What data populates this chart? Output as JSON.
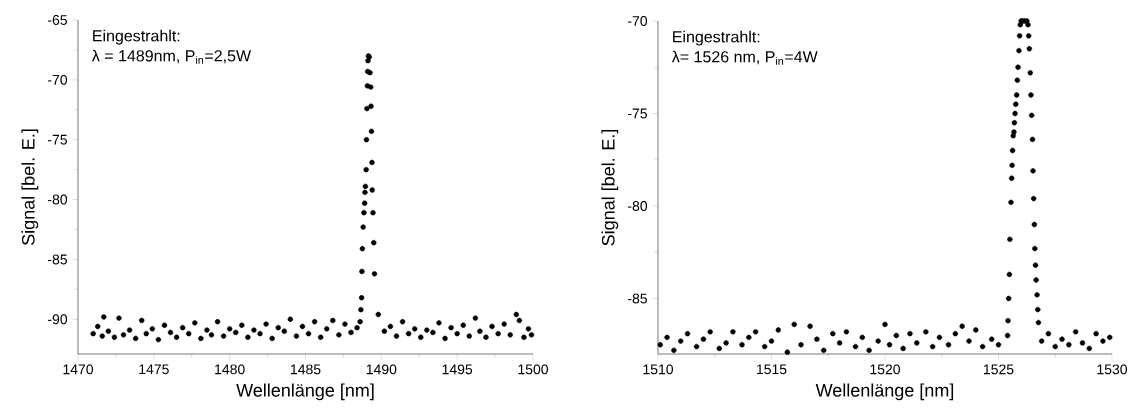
{
  "chart_data": [
    {
      "type": "scatter",
      "xlabel": "Wellenlänge [nm]",
      "ylabel": "Signal [bel. E.]",
      "annotations": [
        "Eingestrahlt:",
        "λ = 1489nm, P$_{in}$=2,5W"
      ],
      "marker": "circle",
      "xlim": [
        1470,
        1500
      ],
      "ylim": [
        -92.9,
        -65
      ],
      "xticks": [
        1470,
        1475,
        1480,
        1485,
        1490,
        1495,
        1500
      ],
      "yticks": [
        -90,
        -85,
        -80,
        -75,
        -70,
        -65
      ],
      "series": [
        {
          "color": "#000000",
          "x": [
            1471.0,
            1471.3,
            1471.6,
            1471.7,
            1472.0,
            1472.4,
            1472.7,
            1473.0,
            1473.4,
            1473.8,
            1474.2,
            1474.5,
            1474.9,
            1475.3,
            1475.7,
            1476.1,
            1476.5,
            1476.9,
            1477.3,
            1477.7,
            1478.1,
            1478.5,
            1478.8,
            1479.2,
            1479.6,
            1480.0,
            1480.4,
            1480.8,
            1481.2,
            1481.6,
            1482.0,
            1482.4,
            1482.8,
            1483.2,
            1483.6,
            1484.0,
            1484.4,
            1484.8,
            1485.2,
            1485.6,
            1486.0,
            1486.4,
            1486.8,
            1487.2,
            1487.6,
            1488.0,
            1488.4,
            1488.6,
            1488.65,
            1488.7,
            1488.72,
            1488.75,
            1488.8,
            1488.85,
            1488.9,
            1488.92,
            1488.95,
            1489.0,
            1489.02,
            1489.05,
            1489.08,
            1489.1,
            1489.12,
            1489.15,
            1489.2,
            1489.25,
            1489.3,
            1489.32,
            1489.35,
            1489.38,
            1489.4,
            1489.45,
            1489.5,
            1489.55,
            1489.8,
            1490.2,
            1490.6,
            1491.0,
            1491.4,
            1491.8,
            1492.2,
            1492.6,
            1493.0,
            1493.4,
            1493.8,
            1494.2,
            1494.6,
            1495.0,
            1495.4,
            1495.8,
            1496.2,
            1496.5,
            1496.9,
            1497.3,
            1497.7,
            1498.1,
            1498.5,
            1498.9,
            1499.1,
            1499.4,
            1499.7,
            1499.9
          ],
          "values": [
            -91.2,
            -90.6,
            -91.4,
            -89.8,
            -91.0,
            -91.5,
            -89.9,
            -91.3,
            -90.9,
            -91.6,
            -90.1,
            -91.2,
            -90.8,
            -91.7,
            -90.5,
            -91.1,
            -91.5,
            -90.7,
            -91.2,
            -90.3,
            -91.6,
            -90.9,
            -91.3,
            -90.2,
            -91.4,
            -90.8,
            -91.1,
            -90.5,
            -91.5,
            -90.9,
            -91.2,
            -90.4,
            -91.6,
            -90.7,
            -91.0,
            -90.0,
            -91.4,
            -90.6,
            -91.2,
            -90.2,
            -91.5,
            -90.8,
            -90.1,
            -91.3,
            -90.4,
            -91.1,
            -90.7,
            -90.2,
            -89.2,
            -88.2,
            -86.0,
            -84.1,
            -82.3,
            -81.1,
            -80.3,
            -79.4,
            -78.9,
            -77.5,
            -75.0,
            -72.4,
            -70.5,
            -69.3,
            -68.4,
            -68.0,
            -68.1,
            -69.4,
            -70.6,
            -72.2,
            -74.3,
            -76.9,
            -79.2,
            -81.1,
            -83.6,
            -86.2,
            -89.6,
            -91.0,
            -90.6,
            -91.4,
            -90.2,
            -91.2,
            -90.8,
            -91.5,
            -90.9,
            -91.1,
            -90.3,
            -91.6,
            -90.7,
            -91.2,
            -90.5,
            -91.4,
            -89.9,
            -91.0,
            -91.5,
            -90.6,
            -91.2,
            -90.4,
            -91.3,
            -89.6,
            -90.1,
            -91.5,
            -90.8,
            -91.3
          ]
        }
      ]
    },
    {
      "type": "scatter",
      "xlabel": "Wellenlänge [nm]",
      "ylabel": "Signal [bel. E.]",
      "annotations": [
        "Eingestrahlt:",
        "λ= 1526 nm, P$_{in}$=4W"
      ],
      "marker": "circle",
      "xlim": [
        1510,
        1530
      ],
      "ylim": [
        -88,
        -70
      ],
      "xticks": [
        1510,
        1515,
        1520,
        1525,
        1530
      ],
      "yticks": [
        -85,
        -80,
        -75,
        -70
      ],
      "series": [
        {
          "color": "#000000",
          "x": [
            1510.1,
            1510.4,
            1510.7,
            1511.0,
            1511.3,
            1511.7,
            1512.0,
            1512.3,
            1512.7,
            1513.0,
            1513.3,
            1513.7,
            1514.0,
            1514.3,
            1514.7,
            1515.0,
            1515.3,
            1515.7,
            1516.0,
            1516.3,
            1516.7,
            1517.0,
            1517.3,
            1517.7,
            1518.0,
            1518.3,
            1518.7,
            1519.0,
            1519.3,
            1519.7,
            1520.0,
            1520.2,
            1520.5,
            1520.8,
            1521.1,
            1521.4,
            1521.8,
            1522.1,
            1522.4,
            1522.8,
            1523.1,
            1523.4,
            1523.7,
            1524.0,
            1524.3,
            1524.7,
            1525.0,
            1525.4,
            1525.42,
            1525.45,
            1525.48,
            1525.5,
            1525.55,
            1525.58,
            1525.6,
            1525.62,
            1525.65,
            1525.68,
            1525.7,
            1525.73,
            1525.76,
            1525.8,
            1525.83,
            1525.86,
            1525.9,
            1525.93,
            1525.96,
            1526.0,
            1526.05,
            1526.15,
            1526.25,
            1526.3,
            1526.33,
            1526.36,
            1526.4,
            1526.43,
            1526.46,
            1526.5,
            1526.52,
            1526.55,
            1526.58,
            1526.6,
            1526.63,
            1526.66,
            1526.7,
            1526.73,
            1526.76,
            1526.9,
            1527.2,
            1527.5,
            1527.8,
            1528.1,
            1528.4,
            1528.7,
            1529.0,
            1529.3,
            1529.6,
            1529.9
          ],
          "values": [
            -87.5,
            -87.1,
            -87.8,
            -87.3,
            -86.9,
            -87.6,
            -87.2,
            -86.8,
            -87.7,
            -87.4,
            -86.8,
            -87.5,
            -87.1,
            -86.8,
            -87.6,
            -87.3,
            -86.7,
            -87.9,
            -86.4,
            -87.5,
            -86.5,
            -87.2,
            -87.8,
            -86.9,
            -87.4,
            -86.8,
            -87.6,
            -87.1,
            -87.8,
            -87.3,
            -86.4,
            -87.5,
            -87.0,
            -87.7,
            -86.9,
            -87.4,
            -86.8,
            -87.6,
            -87.1,
            -87.5,
            -86.9,
            -86.5,
            -87.3,
            -86.7,
            -87.6,
            -87.2,
            -87.5,
            -87.0,
            -86.2,
            -85.0,
            -83.7,
            -81.8,
            -79.8,
            -78.5,
            -77.8,
            -77.0,
            -76.2,
            -76.0,
            -75.5,
            -75.0,
            -74.5,
            -74.0,
            -73.2,
            -72.5,
            -71.6,
            -70.8,
            -70.2,
            -70.0,
            -70.0,
            -70.0,
            -70.0,
            -70.2,
            -70.8,
            -71.5,
            -72.8,
            -74.0,
            -75.1,
            -76.4,
            -78.1,
            -79.6,
            -81.0,
            -82.3,
            -83.2,
            -84.0,
            -84.8,
            -85.6,
            -86.3,
            -87.3,
            -86.9,
            -87.6,
            -87.2,
            -87.5,
            -86.8,
            -87.4,
            -87.7,
            -86.9,
            -87.3,
            -87.1
          ]
        }
      ]
    }
  ]
}
